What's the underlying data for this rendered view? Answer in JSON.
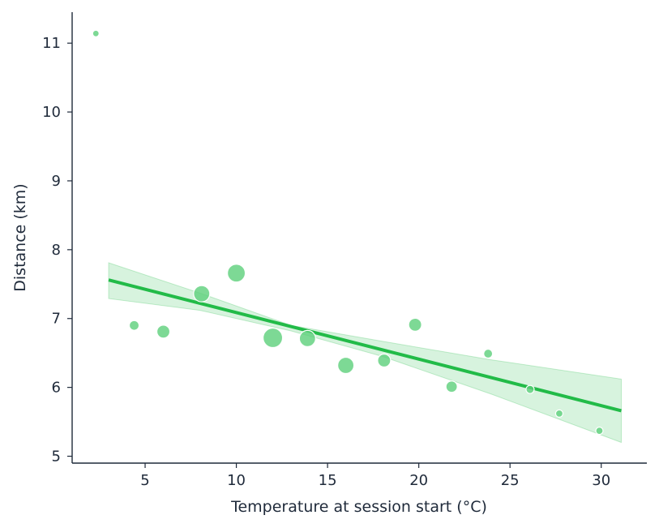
{
  "chart_data": {
    "type": "scatter",
    "xlabel": "Temperature at session start (°C)",
    "ylabel": "Distance (km)",
    "xlim": [
      1,
      32.5
    ],
    "ylim": [
      4.9,
      11.45
    ],
    "xticks": [
      5,
      10,
      15,
      20,
      25,
      30
    ],
    "yticks": [
      5,
      6,
      7,
      8,
      9,
      10,
      11
    ],
    "grid": false,
    "legend": "none",
    "colors": {
      "points": "#5cd07a",
      "point_edge": "#ffffff",
      "trend_line": "#22bb48",
      "confidence_band": "#22bb48",
      "axis": "#1f2a3a"
    },
    "points": [
      {
        "x": 2.3,
        "y": 11.14,
        "size": 4
      },
      {
        "x": 4.4,
        "y": 6.9,
        "size": 6
      },
      {
        "x": 6.0,
        "y": 6.81,
        "size": 8
      },
      {
        "x": 8.1,
        "y": 7.36,
        "size": 10
      },
      {
        "x": 10.0,
        "y": 7.66,
        "size": 11
      },
      {
        "x": 12.0,
        "y": 6.72,
        "size": 12
      },
      {
        "x": 13.9,
        "y": 6.71,
        "size": 10
      },
      {
        "x": 16.0,
        "y": 6.32,
        "size": 10
      },
      {
        "x": 18.1,
        "y": 6.39,
        "size": 8
      },
      {
        "x": 19.8,
        "y": 6.91,
        "size": 8
      },
      {
        "x": 21.8,
        "y": 6.01,
        "size": 7
      },
      {
        "x": 23.8,
        "y": 6.49,
        "size": 5.5
      },
      {
        "x": 26.1,
        "y": 5.97,
        "size": 5
      },
      {
        "x": 27.7,
        "y": 5.62,
        "size": 4.5
      },
      {
        "x": 29.9,
        "y": 5.37,
        "size": 4.5
      }
    ],
    "trend": {
      "x_start": 3.0,
      "y_start": 7.56,
      "x_end": 31.1,
      "y_end": 5.66
    },
    "confidence_band": [
      {
        "x": 3.0,
        "lower": 7.29,
        "upper": 7.81
      },
      {
        "x": 8.0,
        "lower": 7.12,
        "upper": 7.37
      },
      {
        "x": 13.0,
        "lower": 6.82,
        "upper": 6.9
      },
      {
        "x": 18.0,
        "lower": 6.45,
        "upper": 6.67
      },
      {
        "x": 24.0,
        "lower": 5.9,
        "upper": 6.4
      },
      {
        "x": 31.1,
        "lower": 5.2,
        "upper": 6.12
      }
    ]
  }
}
